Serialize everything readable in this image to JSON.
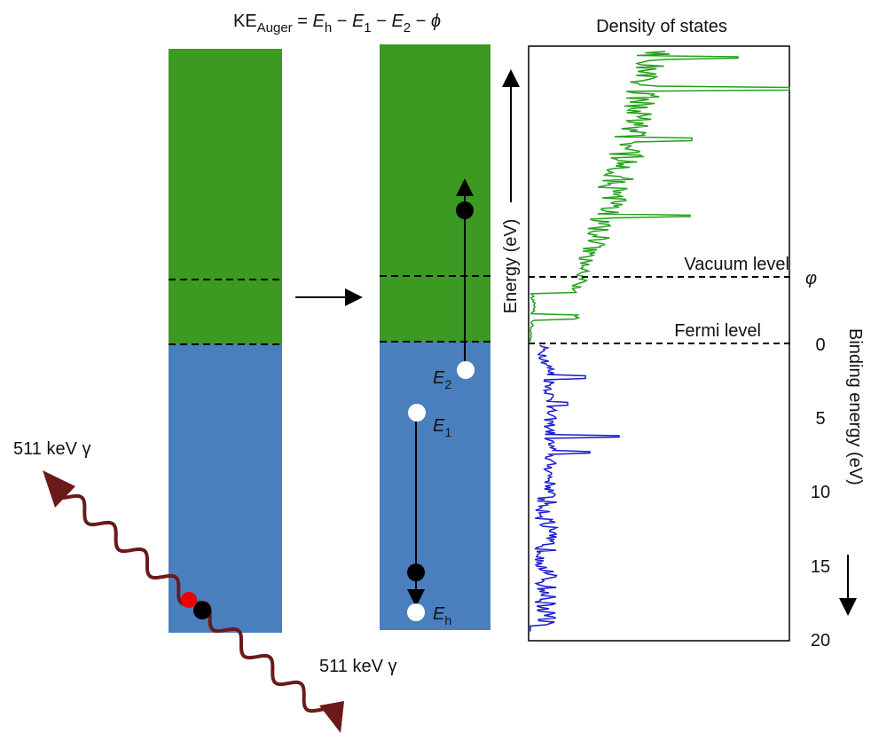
{
  "title": {
    "parts": [
      "KE",
      "Auger",
      " = ",
      "E",
      "h",
      " − ",
      "E",
      "1",
      " − ",
      "E",
      "2",
      " − ",
      "ϕ"
    ]
  },
  "dos": {
    "title": "Density of states",
    "vacuum_label": "Vacuum level",
    "fermi_label": "Fermi level",
    "phi_label": "φ",
    "energy_axis_label": "Energy (eV)",
    "binding_axis_label": "Binding energy (eV)",
    "ticks": [
      "0",
      "5",
      "10",
      "15",
      "20"
    ]
  },
  "levels": [
    {
      "symbol": "E",
      "sub": "2"
    },
    {
      "symbol": "E",
      "sub": "1"
    },
    {
      "symbol": "E",
      "sub": "h"
    }
  ],
  "photons": [
    "511 keV γ",
    "511 keV γ"
  ]
}
